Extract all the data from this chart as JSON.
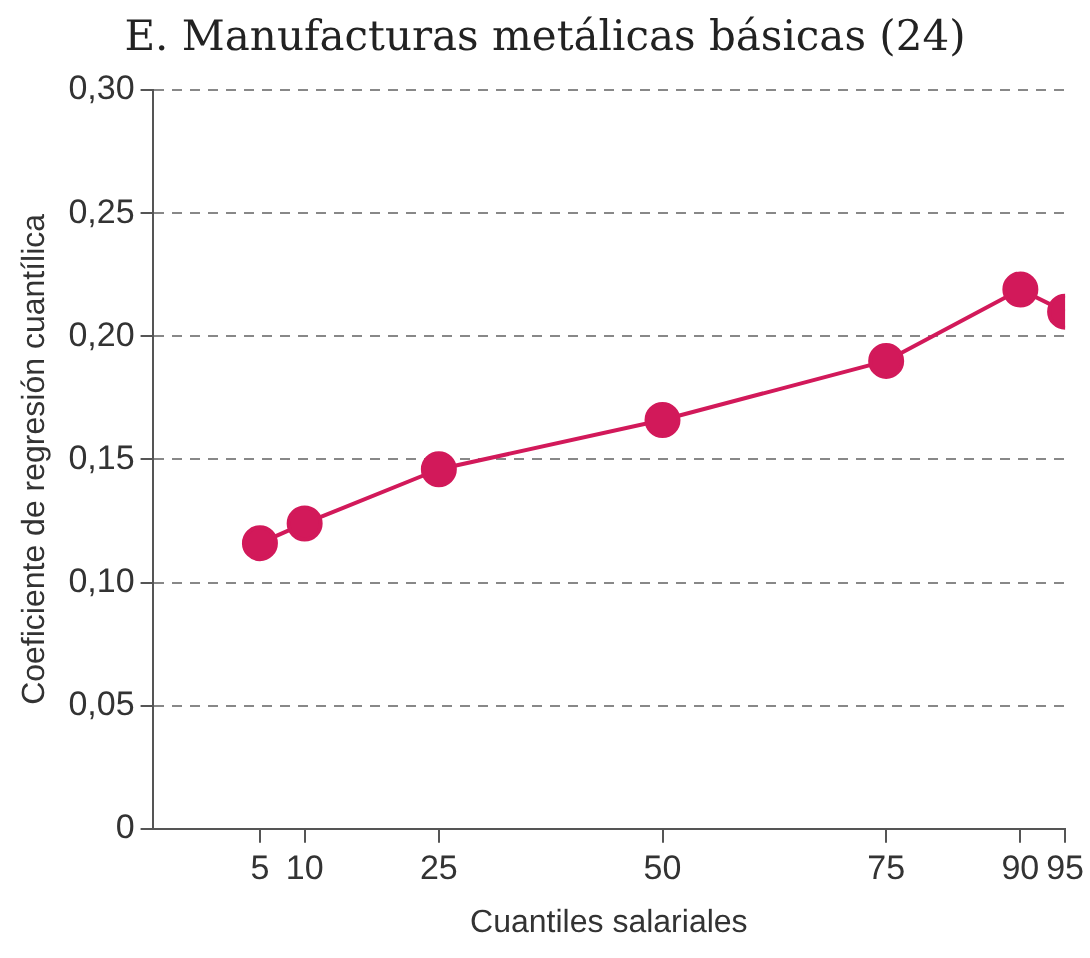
{
  "chart_data": {
    "type": "line",
    "title": "E. Manufacturas metálicas básicas (24)",
    "xlabel": "Cuantiles salariales",
    "ylabel": "Coeficiente de regresión cuantílica",
    "x": [
      5,
      10,
      25,
      50,
      75,
      90,
      95
    ],
    "series": [
      {
        "color": "#d2195a",
        "values": [
          0.116,
          0.124,
          0.146,
          0.166,
          0.19,
          0.219,
          0.21
        ]
      }
    ],
    "xlim": [
      -7,
      95
    ],
    "xticks": [
      5,
      10,
      25,
      50,
      75,
      90,
      95
    ],
    "ylim": [
      0,
      0.3
    ],
    "yticks": [
      0,
      {
        "value": 0.05,
        "label": "0,05"
      },
      {
        "value": 0.1,
        "label": "0,10"
      },
      {
        "value": 0.15,
        "label": "0,15"
      },
      {
        "value": 0.2,
        "label": "0,20"
      },
      {
        "value": 0.25,
        "label": "0,25"
      },
      {
        "value": 0.3,
        "label": "0,30"
      }
    ],
    "grid": "y",
    "marker": "circle",
    "line_style": "solid",
    "legend": false
  }
}
